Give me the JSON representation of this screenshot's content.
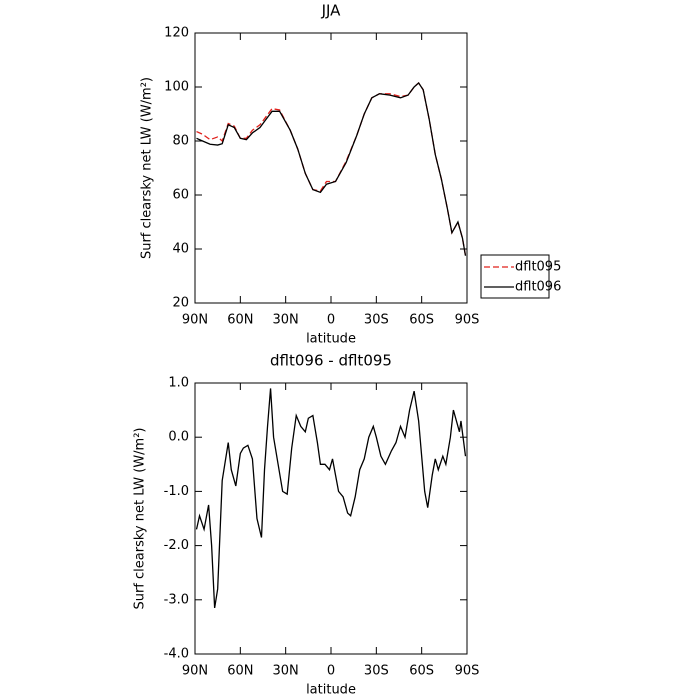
{
  "chart_data": [
    {
      "type": "line",
      "title": "JJA",
      "xlabel": "latitude",
      "ylabel": "Surf clearsky net LW (W/m²)",
      "x": [
        89,
        85,
        80,
        75,
        72,
        68,
        64,
        60,
        56,
        52,
        47,
        43,
        39,
        34,
        27,
        22,
        17,
        12,
        7,
        3,
        -3,
        -10,
        -17,
        -22,
        -27,
        -32,
        -39,
        -46,
        -51,
        -55,
        -58,
        -61,
        -65,
        -69,
        -73,
        -77,
        -80,
        -84,
        -87,
        -89
      ],
      "series": [
        {
          "name": "dflt095",
          "color": "#e0201b",
          "dashed": true,
          "values": [
            83.5,
            82.5,
            80.5,
            81.5,
            80,
            86.5,
            85.5,
            81,
            81,
            84,
            86,
            89,
            92,
            91.5,
            84,
            77,
            68,
            62,
            61.5,
            65,
            65,
            72.5,
            82,
            90,
            96,
            97.5,
            97.5,
            96.5,
            97,
            100,
            101.5,
            99,
            88,
            75,
            66,
            55,
            46,
            50,
            44,
            37.5
          ]
        },
        {
          "name": "dflt096",
          "color": "#000000",
          "dashed": false,
          "values": [
            81,
            80,
            78.8,
            78.5,
            79,
            86,
            85,
            81,
            80.5,
            83,
            85,
            88,
            91,
            91,
            84,
            77,
            68,
            62,
            61,
            64,
            65,
            72,
            82,
            90,
            96,
            97.5,
            97,
            96,
            97,
            100,
            101.5,
            99,
            88,
            75,
            66,
            55,
            46,
            50,
            44,
            37.5
          ]
        }
      ],
      "xlim": [
        90,
        -90
      ],
      "xticks": [
        {
          "value": 90,
          "label": "90N"
        },
        {
          "value": 60,
          "label": "60N"
        },
        {
          "value": 30,
          "label": "30N"
        },
        0,
        {
          "value": -30,
          "label": "30S"
        },
        {
          "value": -60,
          "label": "60S"
        },
        {
          "value": -90,
          "label": "90S"
        }
      ],
      "ylim": [
        20,
        120
      ],
      "yticks": [
        20,
        40,
        60,
        80,
        100,
        120
      ],
      "legend": "right"
    },
    {
      "type": "line",
      "title": "dflt096 - dflt095",
      "xlabel": "latitude",
      "ylabel": "Surf clearsky net LW (W/m²)",
      "x": [
        89,
        87,
        84,
        81,
        79,
        77,
        75,
        72,
        68,
        66,
        63,
        60,
        58,
        55,
        52,
        49,
        46,
        44,
        42,
        40,
        38,
        35,
        32,
        29,
        26,
        23,
        20,
        17,
        15,
        12,
        9,
        7,
        4,
        1,
        -1,
        -3,
        -5,
        -8,
        -11,
        -13,
        -16,
        -19,
        -22,
        -25,
        -28,
        -30,
        -33,
        -36,
        -40,
        -43,
        -46,
        -49,
        -52,
        -55,
        -58,
        -62,
        -64,
        -67,
        -69,
        -71,
        -74,
        -76,
        -79,
        -81,
        -83,
        -85,
        -86,
        -89
      ],
      "series": [
        {
          "color": "#000000",
          "dashed": false,
          "values": [
            -1.7,
            -1.45,
            -1.7,
            -1.25,
            -2.0,
            -3.15,
            -2.8,
            -0.8,
            -0.1,
            -0.6,
            -0.9,
            -0.3,
            -0.2,
            -0.15,
            -0.4,
            -1.5,
            -1.85,
            -0.6,
            0.2,
            0.9,
            0.0,
            -0.5,
            -1.0,
            -1.05,
            -0.2,
            0.4,
            0.2,
            0.1,
            0.35,
            0.4,
            -0.1,
            -0.5,
            -0.5,
            -0.6,
            -0.4,
            -0.7,
            -1.0,
            -1.1,
            -1.4,
            -1.45,
            -1.1,
            -0.6,
            -0.4,
            0.0,
            0.2,
            0.0,
            -0.35,
            -0.5,
            -0.25,
            -0.1,
            0.2,
            0.0,
            0.5,
            0.85,
            0.3,
            -1.0,
            -1.3,
            -0.7,
            -0.4,
            -0.6,
            -0.35,
            -0.5,
            0.0,
            0.5,
            0.3,
            0.1,
            0.3,
            -0.35
          ]
        }
      ],
      "xlim": [
        90,
        -90
      ],
      "xticks": [
        {
          "value": 90,
          "label": "90N"
        },
        {
          "value": 60,
          "label": "60N"
        },
        {
          "value": 30,
          "label": "30N"
        },
        0,
        {
          "value": -30,
          "label": "30S"
        },
        {
          "value": -60,
          "label": "60S"
        },
        {
          "value": -90,
          "label": "90S"
        }
      ],
      "ylim": [
        -4,
        1
      ],
      "yticks": [
        {
          "value": -4,
          "label": "-4.0"
        },
        {
          "value": -3,
          "label": "-3.0"
        },
        {
          "value": -2,
          "label": "-2.0"
        },
        {
          "value": -1,
          "label": "-1.0"
        },
        {
          "value": 0,
          "label": "0.0"
        },
        {
          "value": 1,
          "label": "1.0"
        }
      ]
    }
  ]
}
